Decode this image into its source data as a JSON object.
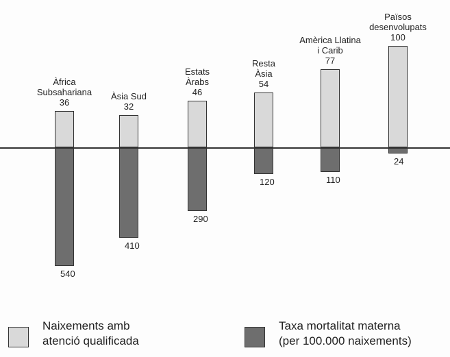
{
  "chart_data": {
    "type": "bar",
    "categories": [
      "Àfrica\nSubsahariana",
      "Àsia Sud",
      "Estats\nÀrabs",
      "Resta\nÀsia",
      "Amèrica Llatina\ni Carib",
      "Països\ndesenvolupats"
    ],
    "series": [
      {
        "name": "Naixements amb\natenció qualificada",
        "color": "#d9d9d9",
        "values": [
          36,
          32,
          46,
          54,
          77,
          100
        ]
      },
      {
        "name": "Taxa mortalitat materna\n(per 100.000 naixements)",
        "color": "#6e6e6e",
        "values": [
          540,
          410,
          290,
          120,
          110,
          24
        ]
      }
    ]
  }
}
